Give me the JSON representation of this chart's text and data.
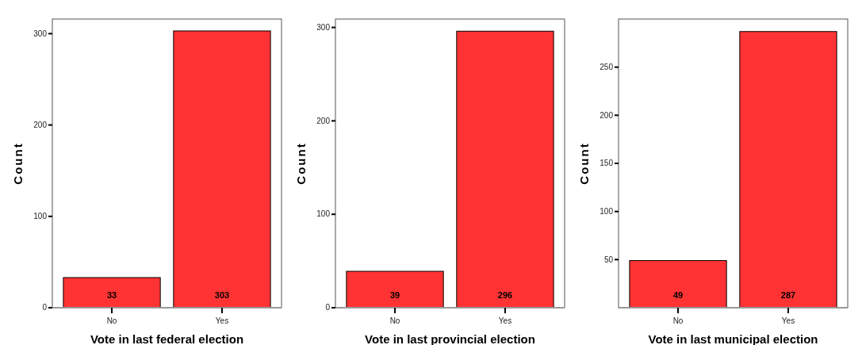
{
  "chart_data": [
    {
      "type": "bar",
      "xlabel": "Vote in last federal election",
      "ylabel": "Count",
      "categories": [
        "No",
        "Yes"
      ],
      "values": [
        33,
        303
      ],
      "color": "#ff3333",
      "ylim": [
        0,
        316
      ],
      "yticks": [
        0,
        100,
        200,
        300
      ],
      "data_labels": true
    },
    {
      "type": "bar",
      "xlabel": "Vote in last provincial election",
      "ylabel": "Count",
      "categories": [
        "No",
        "Yes"
      ],
      "values": [
        39,
        296
      ],
      "color": "#ff3333",
      "ylim": [
        0,
        309
      ],
      "yticks": [
        0,
        100,
        200,
        300
      ],
      "data_labels": true
    },
    {
      "type": "bar",
      "xlabel": "Vote in last municipal election",
      "ylabel": "Count",
      "categories": [
        "No",
        "Yes"
      ],
      "values": [
        49,
        287
      ],
      "color": "#ff3333",
      "ylim": [
        0,
        300
      ],
      "yticks": [
        50,
        100,
        150,
        200,
        250
      ],
      "data_labels": true
    }
  ]
}
